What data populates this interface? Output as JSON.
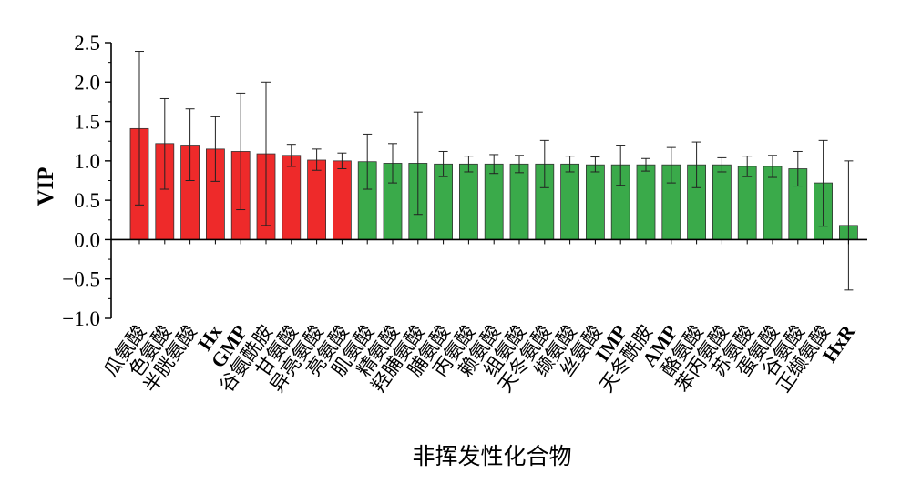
{
  "chart_data": {
    "type": "bar",
    "title": "",
    "xlabel": "非挥发性化合物",
    "ylabel": "VIP",
    "ylim": [
      -1.0,
      2.5
    ],
    "yticks": [
      "2.5",
      "2.0",
      "1.5",
      "1.0",
      "0.5",
      "0.0",
      "−0.5",
      "−1.0"
    ],
    "ytick_values": [
      2.5,
      2.0,
      1.5,
      1.0,
      0.5,
      0.0,
      -0.5,
      -1.0
    ],
    "grid": false,
    "legend": "none",
    "colors": {
      "vip_above_1": "#ee2a2a",
      "vip_below_1": "#3aaa4a",
      "axis": "#000000"
    },
    "categories": [
      "瓜氨酸",
      "色氨酸",
      "半胱氨酸",
      "Hx",
      "GMP",
      "谷氨酰胺",
      "甘氨酸",
      "异亮氨酸",
      "亮氨酸",
      "肌氨酸",
      "精氨酸",
      "羟脯氨酸",
      "脯氨酸",
      "丙氨酸",
      "赖氨酸",
      "组氨酸",
      "天冬氨酸",
      "缬氨酸",
      "丝氨酸",
      "IMP",
      "天冬酰胺",
      "AMP",
      "酪氨酸",
      "苯丙氨酸",
      "苏氨酸",
      "蛋氨酸",
      "谷氨酸",
      "正缬氨酸",
      "HxR"
    ],
    "values": [
      1.41,
      1.22,
      1.2,
      1.15,
      1.12,
      1.09,
      1.07,
      1.01,
      1.0,
      0.99,
      0.97,
      0.97,
      0.96,
      0.96,
      0.96,
      0.96,
      0.96,
      0.96,
      0.95,
      0.95,
      0.95,
      0.95,
      0.95,
      0.95,
      0.93,
      0.93,
      0.9,
      0.72,
      0.18
    ],
    "error_low": [
      0.44,
      0.64,
      0.75,
      0.74,
      0.38,
      0.18,
      0.93,
      0.88,
      0.9,
      0.64,
      0.72,
      0.32,
      0.8,
      0.86,
      0.84,
      0.85,
      0.66,
      0.86,
      0.86,
      0.69,
      0.87,
      0.72,
      0.66,
      0.86,
      0.8,
      0.79,
      0.68,
      0.17,
      -0.64
    ],
    "error_high": [
      2.39,
      1.79,
      1.66,
      1.56,
      1.86,
      2.0,
      1.21,
      1.15,
      1.1,
      1.34,
      1.22,
      1.62,
      1.12,
      1.06,
      1.08,
      1.07,
      1.26,
      1.06,
      1.05,
      1.2,
      1.03,
      1.17,
      1.24,
      1.04,
      1.06,
      1.07,
      1.12,
      1.26,
      1.0
    ]
  }
}
